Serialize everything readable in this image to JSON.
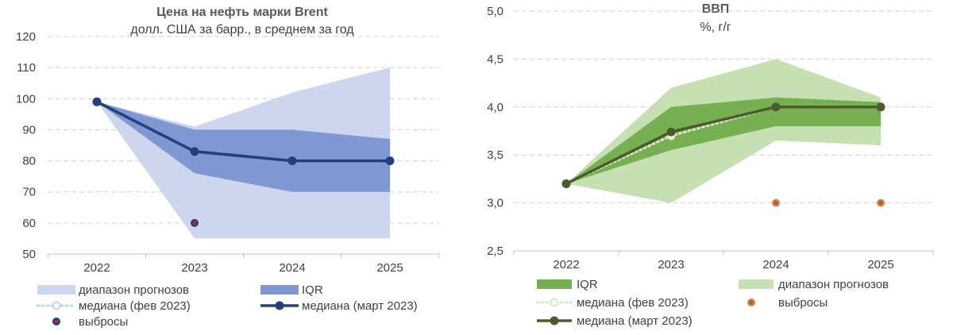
{
  "chart_data": [
    {
      "type": "area",
      "title": "Цена на нефть марки Brent",
      "subtitle": "долл. США за барр., в среднем за год",
      "categories": [
        "2022",
        "2023",
        "2024",
        "2025"
      ],
      "ylim": [
        50,
        120
      ],
      "yticks": [
        "50",
        "60",
        "70",
        "80",
        "90",
        "100",
        "110",
        "120"
      ],
      "grid": true,
      "colors": {
        "range": "#cdd6ee",
        "iqr": "#7f97d3",
        "median": "#233f7c",
        "feb": "#bdd6ee",
        "outlier": "#b02a30"
      },
      "series": [
        {
          "name": "диапазон прогнозов",
          "kind": "band",
          "low": [
            99,
            55,
            55,
            55
          ],
          "high": [
            99,
            91,
            102,
            110
          ]
        },
        {
          "name": "IQR",
          "kind": "band",
          "low": [
            99,
            76,
            70,
            70
          ],
          "high": [
            99,
            90,
            90,
            87
          ]
        },
        {
          "name": "медиана (фев 2023)",
          "kind": "dotted-line",
          "values": [
            99,
            83,
            80,
            80
          ]
        },
        {
          "name": "медиана (март 2023)",
          "kind": "line",
          "values": [
            99,
            83,
            80,
            80
          ]
        },
        {
          "name": "выбросы",
          "kind": "points",
          "points": [
            {
              "x": "2023",
              "y": 60
            }
          ]
        }
      ],
      "legend": [
        {
          "label": "диапазон прогнозов",
          "kind": "band",
          "color": "#cdd6ee"
        },
        {
          "label": "IQR",
          "kind": "band",
          "color": "#7f97d3"
        },
        {
          "label": "медиана (фев 2023)",
          "kind": "dotted",
          "color": "#bdd6ee"
        },
        {
          "label": "медиана (март 2023)",
          "kind": "line",
          "color": "#233f7c"
        },
        {
          "label": "выбросы",
          "kind": "point",
          "color": "#233f7c"
        }
      ]
    },
    {
      "type": "area",
      "title": "ВВП",
      "subtitle": "%, г/г",
      "categories": [
        "2022",
        "2023",
        "2024",
        "2025"
      ],
      "ylim": [
        2.5,
        5.0
      ],
      "yticks": [
        "2,5",
        "3,0",
        "3,5",
        "4,0",
        "4,5",
        "5,0"
      ],
      "grid": true,
      "colors": {
        "range": "#c6dfb3",
        "iqr": "#77b052",
        "median": "#4c5b2d",
        "feb": "#d6e8c6",
        "outlier": "#c0504d"
      },
      "series": [
        {
          "name": "диапазон прогнозов",
          "kind": "band",
          "low": [
            3.2,
            3.0,
            3.65,
            3.6
          ],
          "high": [
            3.2,
            4.2,
            4.5,
            4.1
          ]
        },
        {
          "name": "IQR",
          "kind": "band",
          "low": [
            3.2,
            3.55,
            3.8,
            3.8
          ],
          "high": [
            3.2,
            4.0,
            4.1,
            4.05
          ]
        },
        {
          "name": "медиана (фев 2023)",
          "kind": "dotted-line",
          "values": [
            3.2,
            3.7,
            4.0,
            4.0
          ]
        },
        {
          "name": "медиана (март 2023)",
          "kind": "line",
          "values": [
            3.2,
            3.74,
            4.0,
            4.0
          ]
        },
        {
          "name": "выбросы",
          "kind": "points",
          "points": [
            {
              "x": "2024",
              "y": 3.0
            },
            {
              "x": "2025",
              "y": 3.0
            }
          ]
        }
      ],
      "legend": [
        {
          "label": "IQR",
          "kind": "band",
          "color": "#77b052"
        },
        {
          "label": "диапазон прогнозов",
          "kind": "band",
          "color": "#c6dfb3"
        },
        {
          "label": "медиана (фев 2023)",
          "kind": "dotted",
          "color": "#d6e8c6"
        },
        {
          "label": "выбросы",
          "kind": "point",
          "color": "#c0504d"
        },
        {
          "label": "медиана (март 2023)",
          "kind": "line",
          "color": "#4c5b2d"
        }
      ]
    }
  ]
}
